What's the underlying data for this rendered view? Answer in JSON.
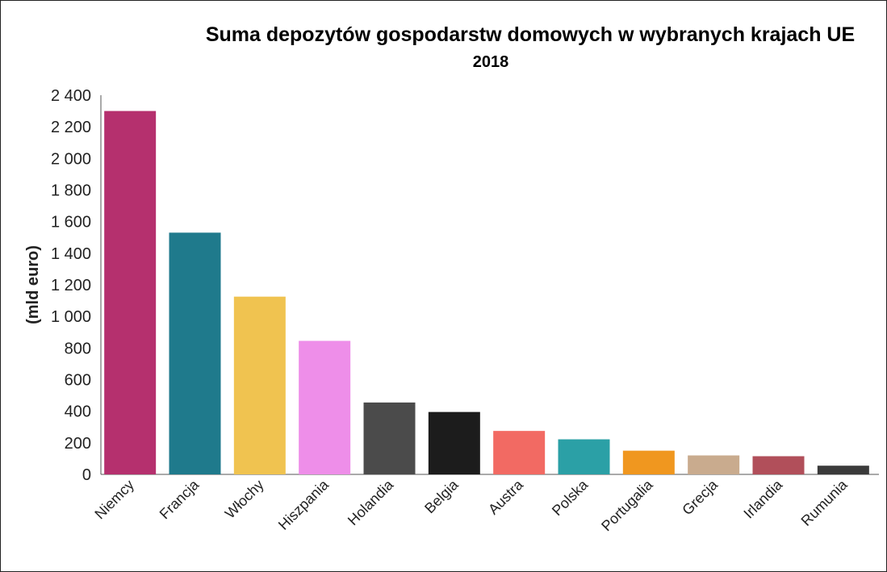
{
  "chart_data": {
    "type": "bar",
    "title": "Suma depozytów gospodarstw domowych w wybranych krajach UE",
    "subtitle": "2018",
    "xlabel": "",
    "ylabel": "(mld euro)",
    "ylim": [
      0,
      2400
    ],
    "yticks": [
      0,
      200,
      400,
      600,
      800,
      1000,
      1200,
      1400,
      1600,
      1800,
      2000,
      2200,
      2400
    ],
    "ytick_labels": [
      "0",
      "200",
      "400",
      "600",
      "800",
      "1 000",
      "1 200",
      "1 400",
      "1 600",
      "1 800",
      "2 000",
      "2 200",
      "2 400"
    ],
    "categories": [
      "Niemcy",
      "Francja",
      "Włochy",
      "Hiszpania",
      "Holandia",
      "Belgia",
      "Austra",
      "Polska",
      "Portugalia",
      "Grecja",
      "Irlandia",
      "Rumunia"
    ],
    "values": [
      2300,
      1530,
      1125,
      845,
      455,
      395,
      275,
      222,
      150,
      120,
      115,
      55
    ],
    "colors": [
      "#b5306e",
      "#1f7a8c",
      "#f0c350",
      "#ee8ee9",
      "#4b4b4b",
      "#1c1c1c",
      "#f26a63",
      "#2ba0a6",
      "#f0971f",
      "#c9ab8e",
      "#b14f5a",
      "#3a3a3a"
    ],
    "grid": false,
    "legend": "none"
  }
}
